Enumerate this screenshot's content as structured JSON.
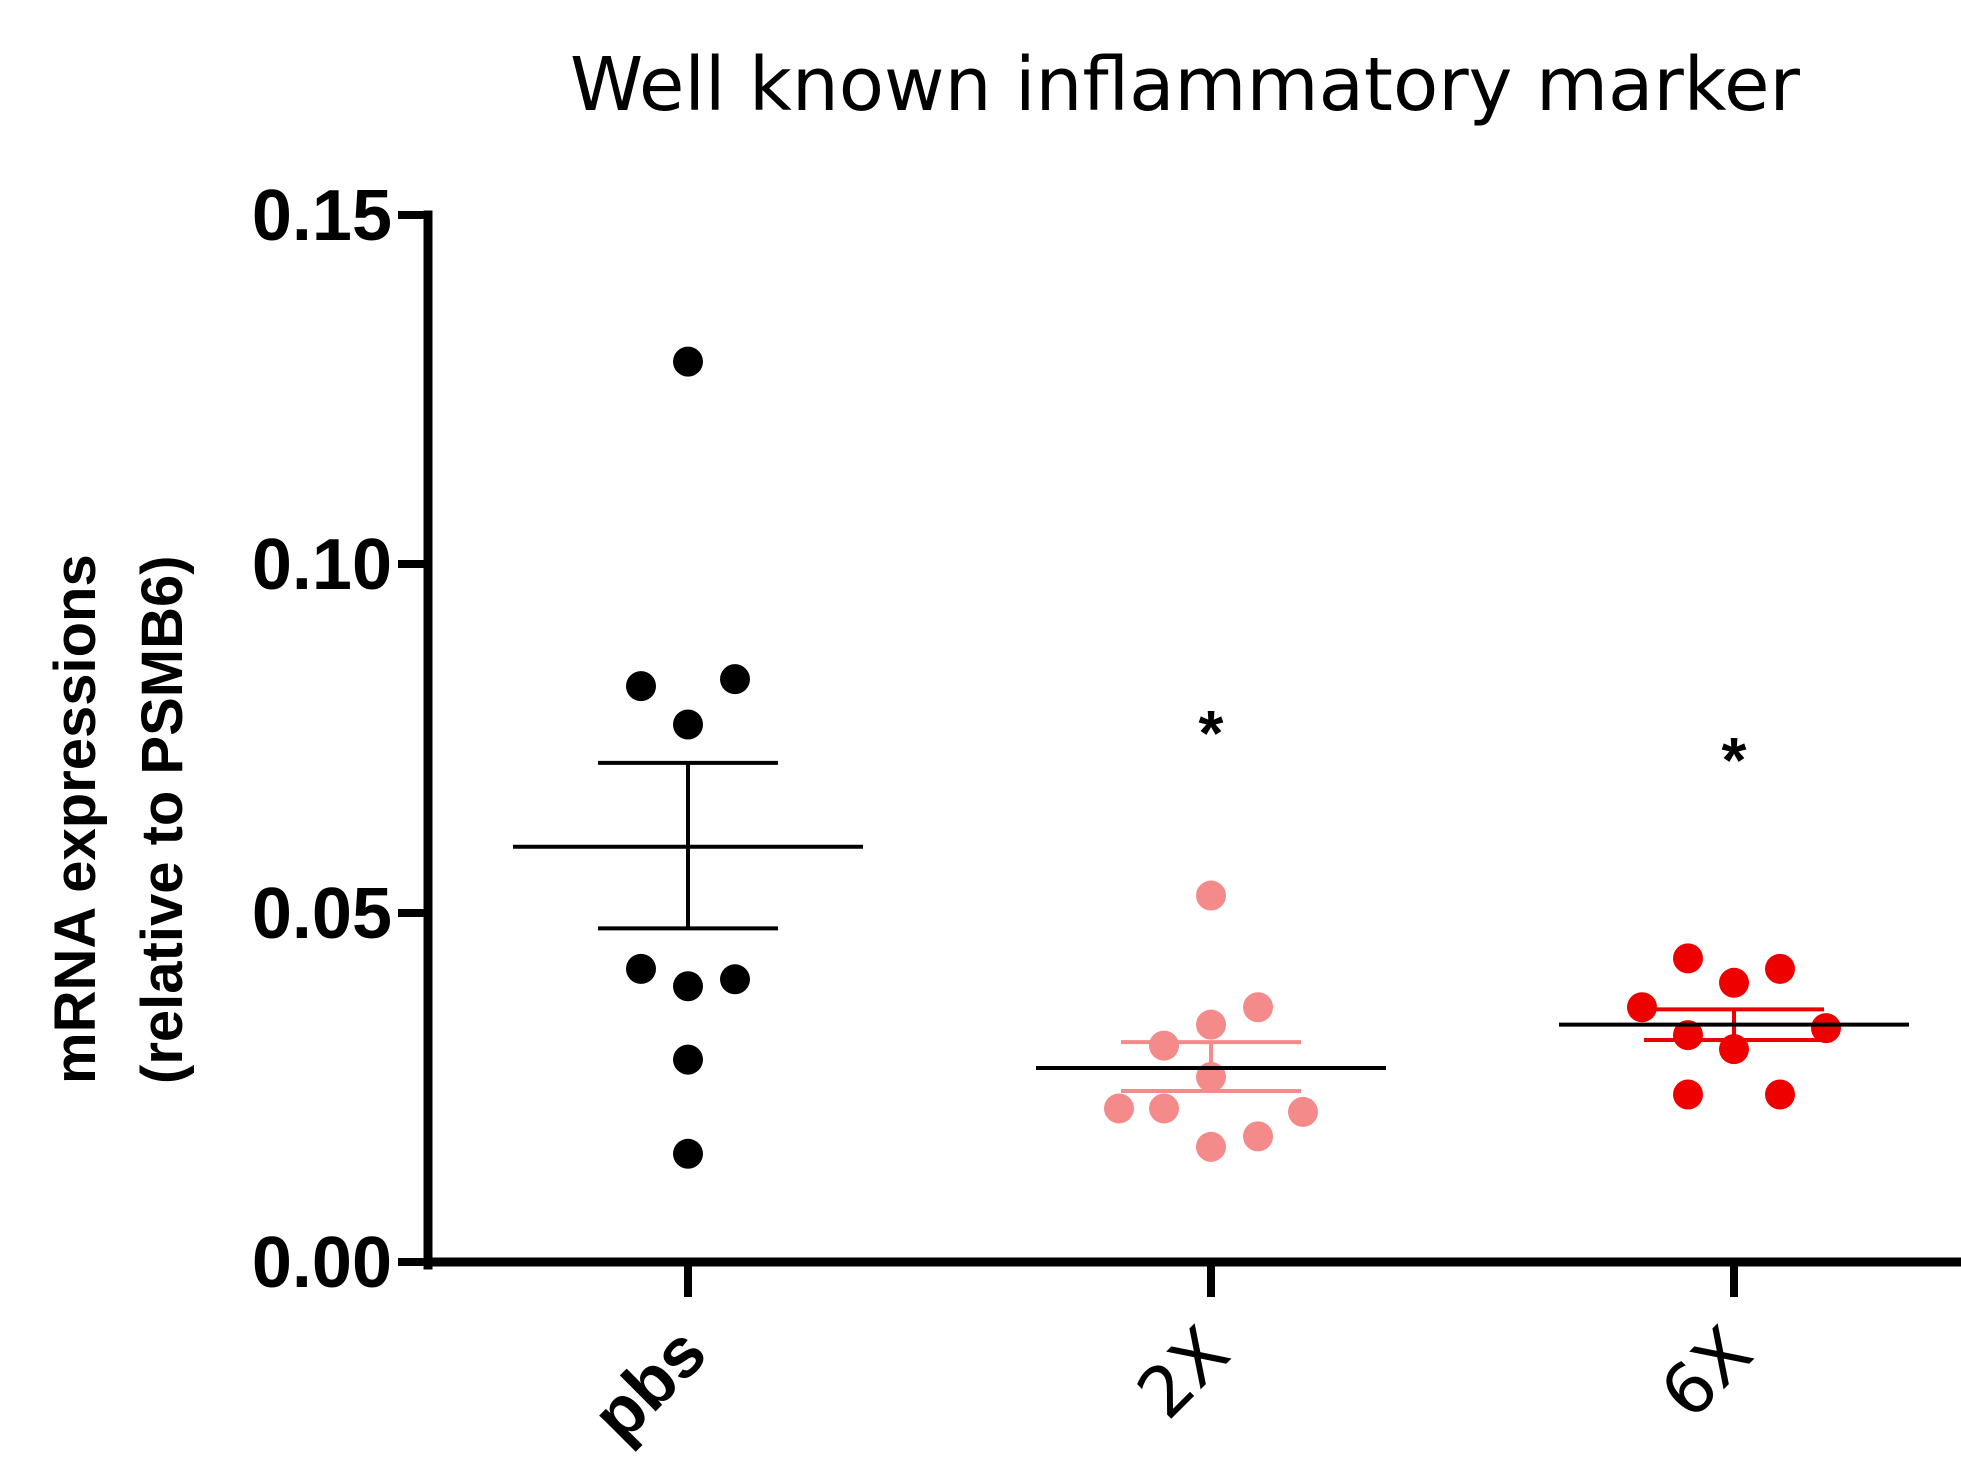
{
  "chart_data": {
    "type": "scatter",
    "title": "Well known inflammatory marker",
    "ylabel_line1": "mRNA expressions",
    "ylabel_line2": "(relative to PSMB6)",
    "xlabel": "",
    "ylim": [
      0,
      0.15
    ],
    "yticks": [
      "0.00",
      "0.05",
      "0.10",
      "0.15"
    ],
    "ytick_values": [
      0,
      0.05,
      0.1,
      0.15
    ],
    "categories": [
      "pbs",
      "2X",
      "6X"
    ],
    "category_labels": [
      "pbs",
      "2X",
      "6X"
    ],
    "grid": false,
    "series": [
      {
        "category": "pbs",
        "color": "#000000",
        "points": [
          0.129,
          0.0825,
          0.0835,
          0.077,
          0.042,
          0.0395,
          0.0405,
          0.029,
          0.0155
        ],
        "mean": 0.0595,
        "sem_upper": 0.0715,
        "sem_lower": 0.0478,
        "mean_line_color": "#000000",
        "sem_color": "#000000",
        "significance": ""
      },
      {
        "category": "2X",
        "color": "#F58A8A",
        "points": [
          0.0525,
          0.0365,
          0.034,
          0.031,
          0.0265,
          0.022,
          0.022,
          0.0215,
          0.018,
          0.0165
        ],
        "mean": 0.0278,
        "sem_upper": 0.0315,
        "sem_lower": 0.0245,
        "mean_line_color": "#000000",
        "sem_color": "#F58A8A",
        "significance": "*"
      },
      {
        "category": "6X",
        "color": "#EE0000",
        "points": [
          0.0435,
          0.042,
          0.04,
          0.0365,
          0.0335,
          0.0325,
          0.0305,
          0.024,
          0.024
        ],
        "mean": 0.034,
        "sem_upper": 0.0362,
        "sem_lower": 0.0318,
        "mean_line_color": "#000000",
        "sem_color": "#EE0000",
        "significance": "*"
      }
    ]
  }
}
